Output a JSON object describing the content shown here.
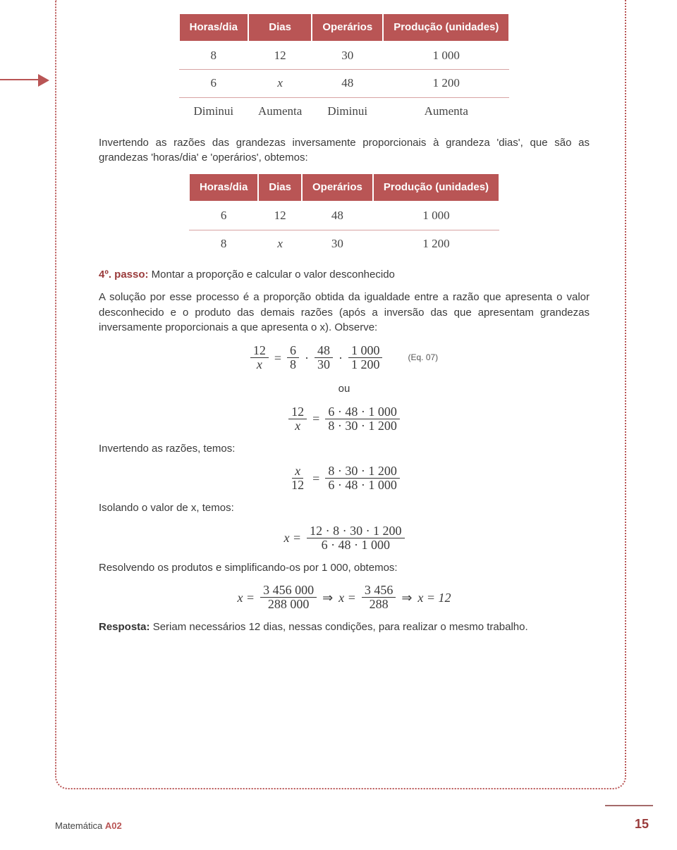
{
  "table1": {
    "columns": [
      "Horas/dia",
      "Dias",
      "Operários",
      "Produção (unidades)"
    ],
    "rows": [
      [
        "8",
        "12",
        "30",
        "1 000"
      ],
      [
        "6",
        "x",
        "48",
        "1 200"
      ],
      [
        "Diminui",
        "Aumenta",
        "Diminui",
        "Aumenta"
      ]
    ],
    "header_bg": "#b95555",
    "header_fg": "#ffffff",
    "row_border": "#d7a3a3"
  },
  "para1": "Invertendo as razões das grandezas inversamente proporcionais à grandeza 'dias', que são as grandezas 'horas/dia' e 'operários', obtemos:",
  "table2": {
    "columns": [
      "Horas/dia",
      "Dias",
      "Operários",
      "Produção (unidades)"
    ],
    "rows": [
      [
        "6",
        "12",
        "48",
        "1 000"
      ],
      [
        "8",
        "x",
        "30",
        "1 200"
      ]
    ]
  },
  "step4_label": "4º. passo:",
  "step4_text": " Montar a proporção e calcular o valor desconhecido",
  "para2": "A solução por esse processo é a proporção obtida da igualdade entre a razão que apresenta o valor desconhecido e o produto das demais razões (após a inversão das que apresentam grandezas inversamente proporcionais a que apresenta o x). Observe:",
  "eq07": {
    "lhs_num": "12",
    "lhs_den": "x",
    "f1_num": "6",
    "f1_den": "8",
    "f2_num": "48",
    "f2_den": "30",
    "f3_num": "1 000",
    "f3_den": "1 200",
    "label": "(Eq. 07)"
  },
  "ou": "ou",
  "eqA": {
    "lhs_num": "12",
    "lhs_den": "x",
    "rhs_num": "6 · 48 · 1 000",
    "rhs_den": "8 · 30 · 1 200"
  },
  "line_invert": "Invertendo as razões, temos:",
  "eqB": {
    "lhs_num": "x",
    "lhs_den": "12",
    "rhs_num": "8 · 30 · 1 200",
    "rhs_den": "6 · 48 · 1 000"
  },
  "line_isolate": "Isolando o valor de x, temos:",
  "eqC": {
    "lhs": "x =",
    "rhs_num": "12 · 8 · 30 · 1 200",
    "rhs_den": "6 · 48 · 1 000"
  },
  "para3": "Resolvendo os produtos e simplificando-os por 1 000, obtemos:",
  "eqD": {
    "p1_num": "3 456 000",
    "p1_den": "288 000",
    "p2_num": "3 456",
    "p2_den": "288",
    "final": "x = 12"
  },
  "resp_label": "Resposta:",
  "resp_text": " Seriam necessários 12 dias, nessas condições, para realizar o mesmo trabalho.",
  "footer_subject": "Matemática",
  "footer_code": "A02",
  "page_number": "15"
}
